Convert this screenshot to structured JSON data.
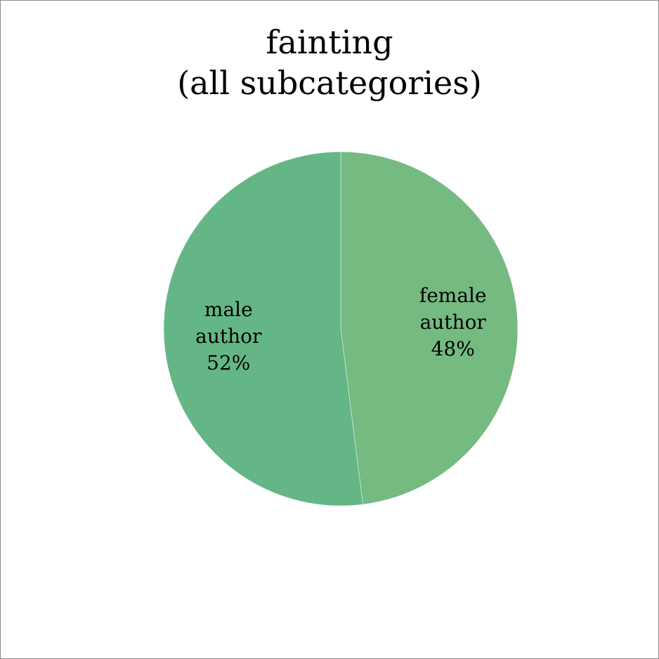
{
  "chart_data": {
    "type": "pie",
    "title": [
      "fainting",
      "(all subcategories)"
    ],
    "start_angle_deg": 0,
    "direction": "clockwise",
    "slices": [
      {
        "label_lines": [
          "female",
          "author",
          "48%"
        ],
        "value": 48,
        "color": "#74ba81"
      },
      {
        "label_lines": [
          "male",
          "author",
          "52%"
        ],
        "value": 52,
        "color": "#65b686"
      }
    ]
  }
}
